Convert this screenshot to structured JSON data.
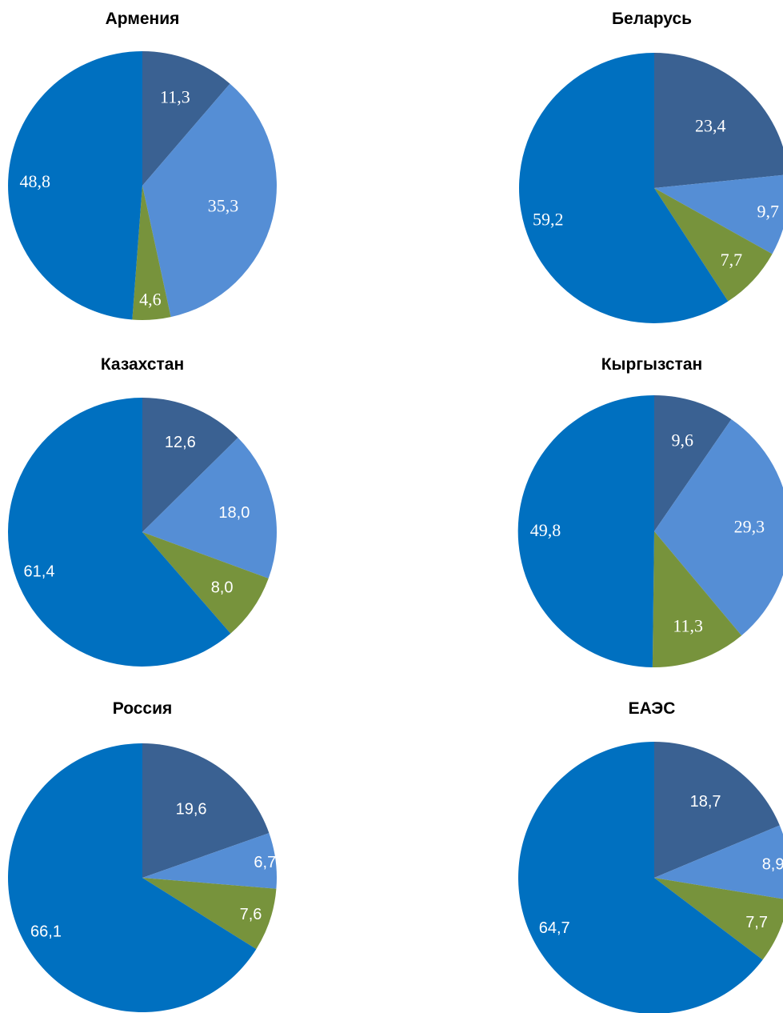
{
  "chart_data": [
    {
      "type": "pie",
      "title": "Армения",
      "values": [
        11.3,
        35.3,
        4.6,
        48.8
      ],
      "labels": [
        "11,3",
        "35,3",
        "4,6",
        "48,8"
      ],
      "colors": [
        "#3a6192",
        "#558ed5",
        "#77933c",
        "#0070c0"
      ]
    },
    {
      "type": "pie",
      "title": "Беларусь",
      "values": [
        23.4,
        9.7,
        7.7,
        59.2
      ],
      "labels": [
        "23,4",
        "9,7",
        "7,7",
        "59,2"
      ],
      "colors": [
        "#3a6192",
        "#558ed5",
        "#77933c",
        "#0070c0"
      ]
    },
    {
      "type": "pie",
      "title": "Казахстан",
      "values": [
        12.6,
        18.0,
        8.0,
        61.4
      ],
      "labels": [
        "12,6",
        "18,0",
        "8,0",
        "61,4"
      ],
      "colors": [
        "#3a6192",
        "#558ed5",
        "#77933c",
        "#0070c0"
      ]
    },
    {
      "type": "pie",
      "title": "Кыргызстан",
      "values": [
        9.6,
        29.3,
        11.3,
        49.8
      ],
      "labels": [
        "9,6",
        "29,3",
        "11,3",
        "49,8"
      ],
      "colors": [
        "#3a6192",
        "#558ed5",
        "#77933c",
        "#0070c0"
      ]
    },
    {
      "type": "pie",
      "title": "Россия",
      "values": [
        19.6,
        6.7,
        7.6,
        66.1
      ],
      "labels": [
        "19,6",
        "6,7",
        "7,6",
        "66,1"
      ],
      "colors": [
        "#3a6192",
        "#558ed5",
        "#77933c",
        "#0070c0"
      ]
    },
    {
      "type": "pie",
      "title": "ЕАЭС",
      "values": [
        18.7,
        8.9,
        7.7,
        64.7
      ],
      "labels": [
        "18,7",
        "8,9",
        "7,7",
        "64,7"
      ],
      "colors": [
        "#3a6192",
        "#558ed5",
        "#77933c",
        "#0070c0"
      ]
    }
  ]
}
